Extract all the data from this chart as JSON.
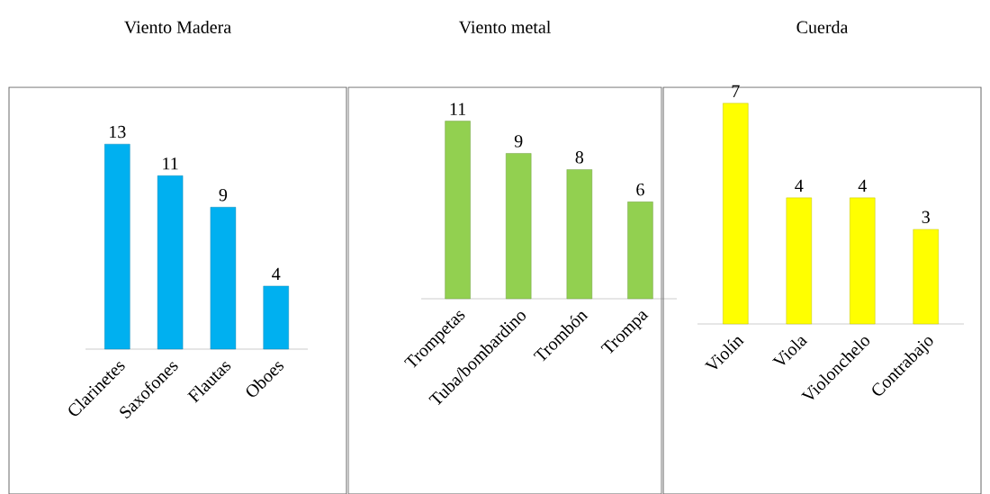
{
  "chart_data": [
    {
      "type": "bar",
      "title": "Viento Madera",
      "categories": [
        "Clarinetes",
        "Saxofones",
        "Flautas",
        "Oboes"
      ],
      "values": [
        13,
        11,
        9,
        4
      ],
      "color": "#00b0f0",
      "data_labels": true
    },
    {
      "type": "bar",
      "title": "Viento metal",
      "categories": [
        "Trompetas",
        "Tuba/bombardino",
        "Trombón",
        "Trompa"
      ],
      "values": [
        11,
        9,
        8,
        6
      ],
      "color": "#92d050",
      "data_labels": true
    },
    {
      "type": "bar",
      "title": "Cuerda",
      "categories": [
        "Violín",
        "Viola",
        "Violonchelo",
        "Contrabajo"
      ],
      "values": [
        7,
        4,
        4,
        3
      ],
      "color": "#ffff00",
      "data_labels": true
    }
  ]
}
